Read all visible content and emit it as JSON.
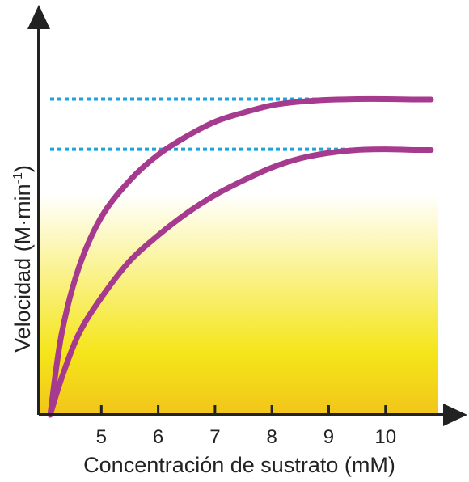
{
  "chart_data": {
    "type": "line",
    "title": "",
    "xlabel": "Concentración de sustrato (mM)",
    "ylabel": {
      "main": "Velocidad (M·min",
      "superscript": "-1",
      "close": ")"
    },
    "x_ticks": [
      5,
      6,
      7,
      8,
      9,
      10
    ],
    "xlim": [
      3.9,
      10.9
    ],
    "ylim": [
      0,
      100
    ],
    "grid": false,
    "series": [
      {
        "color": "#a63a8e",
        "x": [
          4.1,
          4.3,
          4.6,
          5.0,
          5.5,
          6.0,
          6.5,
          7.0,
          7.5,
          8.0,
          8.5,
          9.0,
          9.5,
          10.0,
          10.5,
          10.8
        ],
        "y": [
          0,
          22,
          40,
          54,
          64,
          71,
          76,
          80,
          82.5,
          84.5,
          85.5,
          86,
          86.2,
          86.2,
          86.1,
          86.1
        ]
      },
      {
        "color": "#a63a8e",
        "x": [
          4.1,
          4.3,
          4.6,
          5.0,
          5.5,
          6.0,
          6.5,
          7.0,
          7.5,
          8.0,
          8.5,
          9.0,
          9.5,
          10.0,
          10.5,
          10.8
        ],
        "y": [
          0,
          10,
          22,
          32,
          42,
          49,
          55,
          60,
          64,
          67.5,
          70,
          71.5,
          72.3,
          72.5,
          72.3,
          72.3
        ]
      }
    ],
    "reference_lines": [
      {
        "y": 86.2,
        "color": "#1fa3d8",
        "style": "dotted"
      },
      {
        "y": 72.5,
        "color": "#1fa3d8",
        "style": "dotted"
      }
    ],
    "background_gradient": [
      "#ffffff",
      "#f5e51a",
      "#f2c51a"
    ],
    "axis_color": "#222222"
  }
}
